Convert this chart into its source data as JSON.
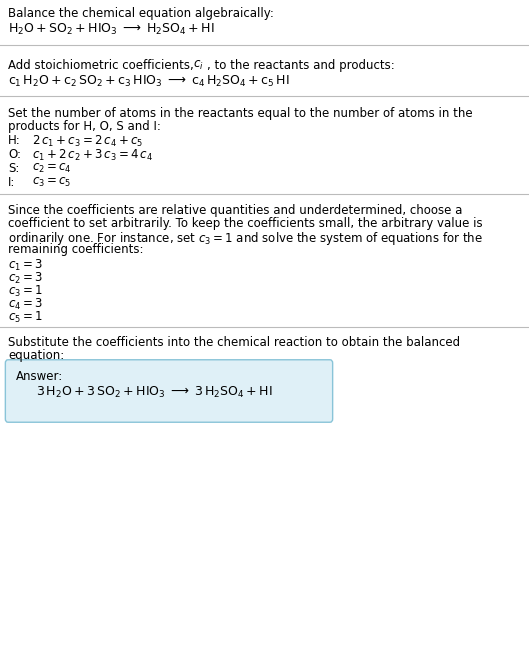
{
  "bg_color": "#ffffff",
  "text_color": "#000000",
  "box_fill": "#dff0f7",
  "box_edge": "#89c4d8",
  "divider_color": "#bbbbbb",
  "fs_body": 8.5,
  "fs_eq": 9.0,
  "sections": {
    "s1_header": "Balance the chemical equation algebraically:",
    "s1_eq": "$\\mathrm{H_2O + SO_2 + HIO_3 \\;\\longrightarrow\\; H_2SO_4 + HI}$",
    "s2_header_a": "Add stoichiometric coefficients, ",
    "s2_header_ci": "$c_i$",
    "s2_header_b": ", to the reactants and products:",
    "s2_eq": "$\\mathrm{c_1\\,H_2O + c_2\\,SO_2 + c_3\\,HIO_3 \\;\\longrightarrow\\; c_4\\,H_2SO_4 + c_5\\,HI}$",
    "s3_header1": "Set the number of atoms in the reactants equal to the number of atoms in the",
    "s3_header2": "products for H, O, S and I:",
    "s3_rows": [
      [
        "H:",
        "$2\\,c_1 + c_3 = 2\\,c_4 + c_5$"
      ],
      [
        "O:",
        "$c_1 + 2\\,c_2 + 3\\,c_3 = 4\\,c_4$"
      ],
      [
        "S:",
        "$c_2 = c_4$"
      ],
      [
        "I:",
        "$c_3 = c_5$"
      ]
    ],
    "s4_header": [
      "Since the coefficients are relative quantities and underdetermined, choose a",
      "coefficient to set arbitrarily. To keep the coefficients small, the arbitrary value is",
      "ordinarily one. For instance, set $c_3 = 1$ and solve the system of equations for the",
      "remaining coefficients:"
    ],
    "s4_vals": [
      "$c_1 = 3$",
      "$c_2 = 3$",
      "$c_3 = 1$",
      "$c_4 = 3$",
      "$c_5 = 1$"
    ],
    "s5_header1": "Substitute the coefficients into the chemical reaction to obtain the balanced",
    "s5_header2": "equation:",
    "s5_answer_label": "Answer:",
    "s5_answer_eq": "$\\mathrm{3\\,H_2O + 3\\,SO_2 + HIO_3 \\;\\longrightarrow\\; 3\\,H_2SO_4 + HI}$"
  }
}
